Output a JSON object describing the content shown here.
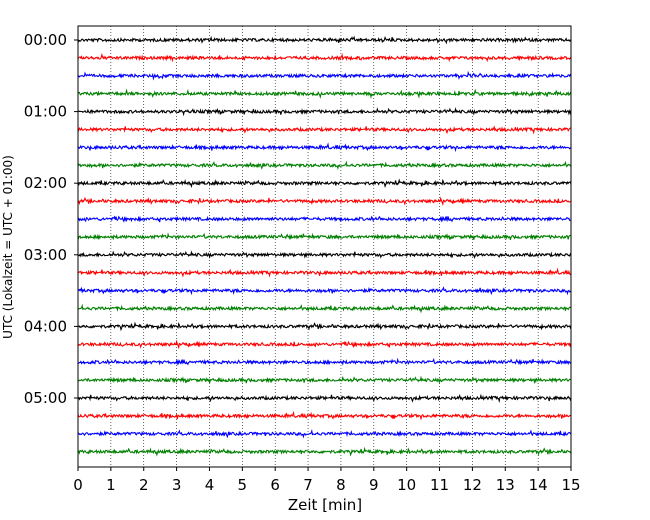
{
  "chart_data": {
    "type": "line",
    "title": "",
    "xlabel": "Zeit  [min]",
    "ylabel": "UTC (Lokalzeit = UTC + 01:00)",
    "xlim": [
      0,
      15
    ],
    "x_ticks": [
      0,
      1,
      2,
      3,
      4,
      5,
      6,
      7,
      8,
      9,
      10,
      11,
      12,
      13,
      14,
      15
    ],
    "y_tick_labels": [
      "00:00",
      "01:00",
      "02:00",
      "03:00",
      "04:00",
      "05:00"
    ],
    "grid": {
      "vertical_dotted": true,
      "horizontal": false
    },
    "legend": "none",
    "trace_interval_minutes": 15,
    "trace_count": 24,
    "color_cycle": [
      "#000000",
      "#ff0000",
      "#0000ff",
      "#008000"
    ],
    "trace_start_times": [
      "00:00",
      "00:15",
      "00:30",
      "00:45",
      "01:00",
      "01:15",
      "01:30",
      "01:45",
      "02:00",
      "02:15",
      "02:30",
      "02:45",
      "03:00",
      "03:15",
      "03:30",
      "03:45",
      "04:00",
      "04:15",
      "04:30",
      "04:45",
      "05:00",
      "05:15",
      "05:30",
      "05:45"
    ]
  }
}
